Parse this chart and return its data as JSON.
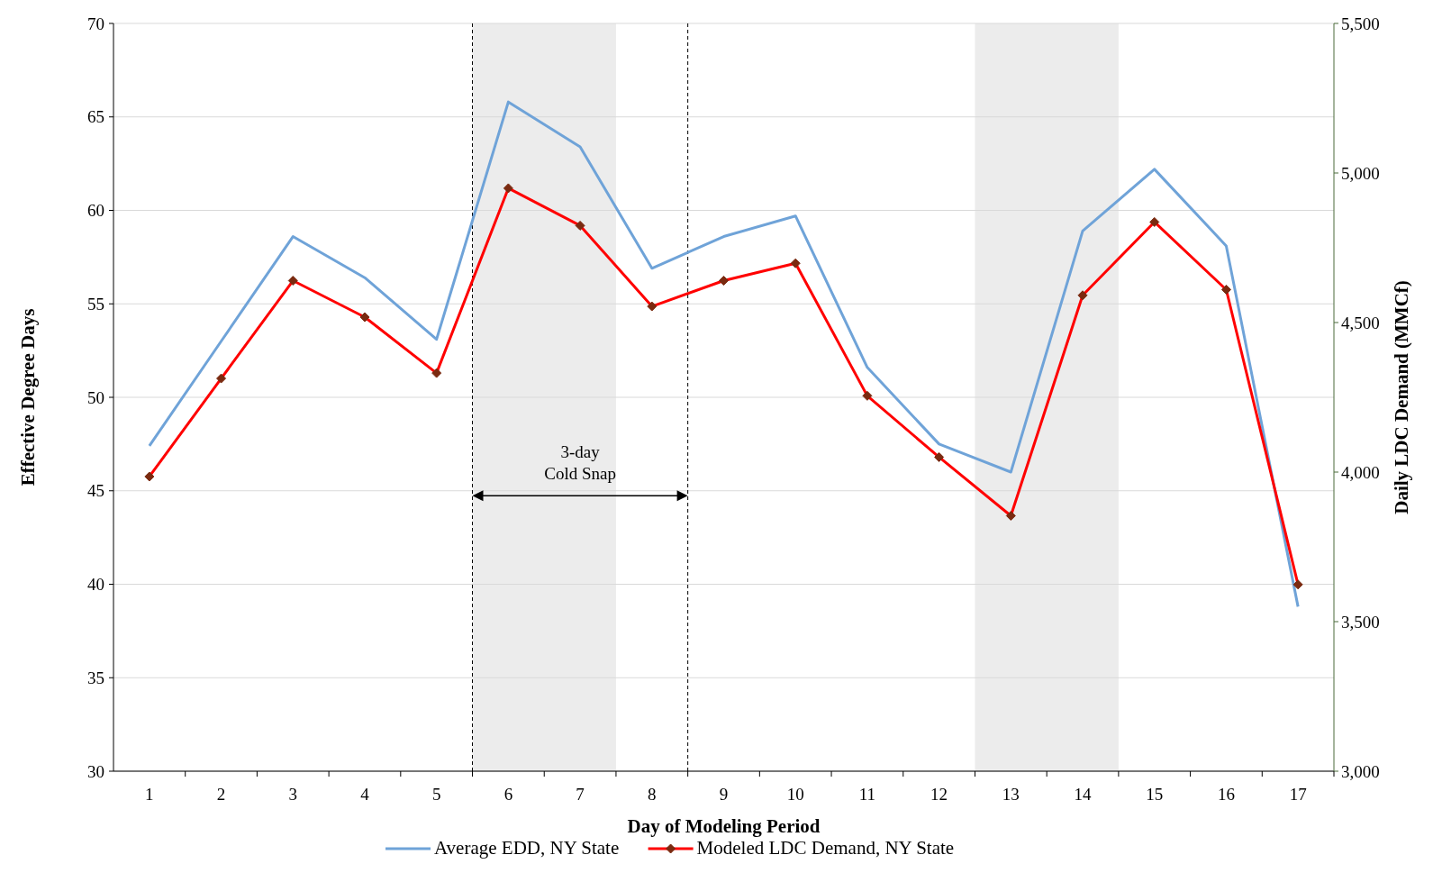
{
  "chart_data": {
    "type": "line",
    "xlabel": "Day of Modeling Period",
    "ylabel": "Effective Degree Days",
    "y2label": "Daily LDC Demand (MMCf)",
    "x": [
      1,
      2,
      3,
      4,
      5,
      6,
      7,
      8,
      9,
      10,
      11,
      12,
      13,
      14,
      15,
      16,
      17
    ],
    "xlim": [
      0.5,
      17.5
    ],
    "xticks": [
      1,
      2,
      3,
      4,
      5,
      6,
      7,
      8,
      9,
      10,
      11,
      12,
      13,
      14,
      15,
      16,
      17
    ],
    "ylim": [
      30,
      70
    ],
    "yticks": [
      30,
      35,
      40,
      45,
      50,
      55,
      60,
      65,
      70
    ],
    "y2lim": [
      3000,
      5500
    ],
    "y2ticks": [
      {
        "value": 3000,
        "label": "3,000"
      },
      {
        "value": 3500,
        "label": "3,500"
      },
      {
        "value": 4000,
        "label": "4,000"
      },
      {
        "value": 4500,
        "label": "4,500"
      },
      {
        "value": 5000,
        "label": "5,000"
      },
      {
        "value": 5500,
        "label": "5,500"
      }
    ],
    "series": [
      {
        "name": "Average EDD, NY State",
        "color": "#6fa3d8",
        "marker": "none",
        "values": [
          47.4,
          53,
          58.6,
          56.4,
          53.1,
          65.8,
          63.4,
          56.9,
          58.6,
          59.7,
          51.6,
          47.5,
          46.0,
          58.9,
          62.2,
          58.1,
          38.8
        ]
      },
      {
        "name": "Modeled LDC Demand, NY State",
        "color": "#ff0000",
        "marker": "diamond",
        "axis": "y2",
        "values": [
          3985,
          4313,
          4640,
          4518,
          4331,
          4949,
          4824,
          4554,
          4640,
          4698,
          4255,
          4050,
          3854,
          4591,
          4836,
          4610,
          3624
        ]
      }
    ],
    "bands": [
      {
        "axis": "x",
        "from": 5.5,
        "to": 7.5,
        "color": "#ececec"
      },
      {
        "axis": "x",
        "from": 12.5,
        "to": 14.5,
        "color": "#ececec"
      }
    ],
    "ref_lines": [
      {
        "axis": "x",
        "value": 5.5,
        "line_style": "dashed",
        "color": "#000000"
      },
      {
        "axis": "x",
        "value": 8.5,
        "line_style": "dashed",
        "color": "#000000"
      }
    ],
    "annotations": [
      "3-day\nCold Snap"
    ],
    "grid": "y",
    "legend": "bottom"
  }
}
